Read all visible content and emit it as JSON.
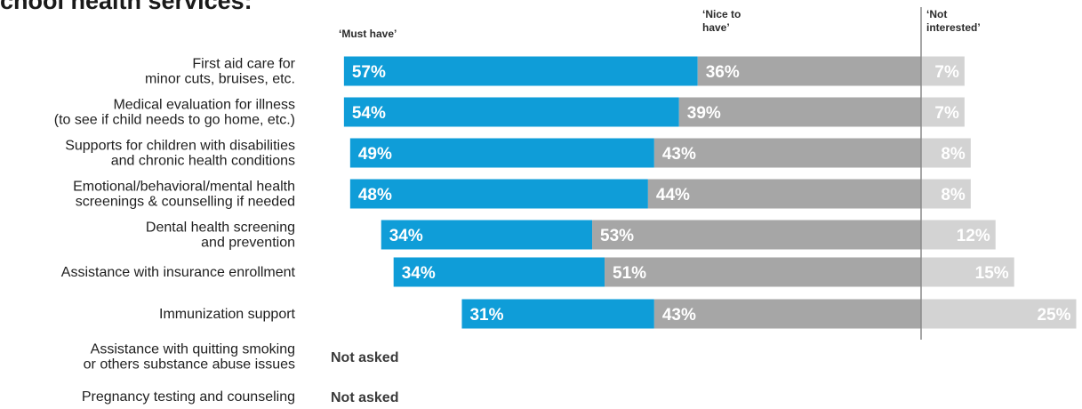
{
  "title": "chool health services:",
  "chart_data": {
    "type": "bar",
    "stacked": true,
    "headers": [
      "‘Must have’",
      "‘Nice to\nhave’",
      "‘Not\ninterested’"
    ],
    "colors": {
      "must": "#0f9dd8",
      "nice": "#a6a6a6",
      "not": "#d3d3d3"
    },
    "rows": [
      {
        "label": [
          "First aid care for",
          "minor cuts, bruises, etc."
        ],
        "values": [
          57,
          36,
          7
        ],
        "labels": [
          "57%",
          "36%",
          "7%"
        ]
      },
      {
        "label": [
          "Medical evaluation for illness",
          "(to see if child needs to go home, etc.)"
        ],
        "values": [
          54,
          39,
          7
        ],
        "labels": [
          "54%",
          "39%",
          "7%"
        ]
      },
      {
        "label": [
          "Supports for children with disabilities",
          "and chronic health conditions"
        ],
        "values": [
          49,
          43,
          8
        ],
        "labels": [
          "49%",
          "43%",
          "8%"
        ]
      },
      {
        "label": [
          "Emotional/behavioral/mental health",
          "screenings & counselling if needed"
        ],
        "values": [
          48,
          44,
          8
        ],
        "labels": [
          "48%",
          "44%",
          "8%"
        ]
      },
      {
        "label": [
          "Dental health screening",
          "and prevention"
        ],
        "values": [
          34,
          53,
          12
        ],
        "labels": [
          "34%",
          "53%",
          "12%"
        ]
      },
      {
        "label": [
          "Assistance with insurance enrollment"
        ],
        "values": [
          34,
          51,
          15
        ],
        "labels": [
          "34%",
          "51%",
          "15%"
        ]
      },
      {
        "label": [
          "Immunization support"
        ],
        "values": [
          31,
          43,
          25
        ],
        "labels": [
          "31%",
          "43%",
          "25%"
        ]
      },
      {
        "label": [
          "Assistance with quitting smoking",
          "or others substance abuse issues"
        ],
        "values": null,
        "labels": [
          "Not asked"
        ]
      },
      {
        "label": [
          "Pregnancy testing and counseling"
        ],
        "values": null,
        "labels": [
          "Not asked"
        ]
      }
    ]
  }
}
